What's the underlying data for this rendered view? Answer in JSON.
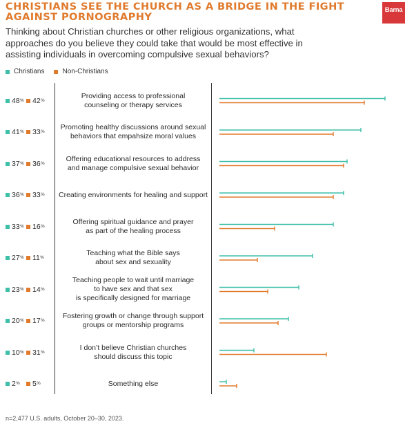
{
  "header": {
    "title": "CHRISTIANS SEE THE CHURCH AS A BRIDGE IN THE FIGHT AGAINST PORNOGRAPHY",
    "logo": "Barna",
    "question": "Thinking about Christian churches or other religious organizations, what approaches do you believe they could take that would be most effective in assisting individuals in overcoming compulsive sexual behaviors?"
  },
  "footnote": "n=2,477 U.S. adults, October 20–30, 2023.",
  "colors": {
    "christians": "#3dbfa9",
    "non_christians": "#e07b2e"
  },
  "chart_data": {
    "type": "bar",
    "orientation": "horizontal",
    "title": "CHRISTIANS SEE THE CHURCH AS A BRIDGE IN THE FIGHT AGAINST PORNOGRAPHY",
    "xlim": [
      0,
      50
    ],
    "unit": "%",
    "legend": [
      "Christians",
      "Non-Christians"
    ],
    "categories": [
      "Providing access to professional\ncounseling or therapy services",
      "Promoting healthy discussions around sexual\nbehaviors that empahsize moral values",
      "Offering educational resources to address\nand manage compulsive sexual behavior",
      "Creating environments for healing and support",
      "Offering spiritual guidance and prayer\nas part of the healing process",
      "Teaching what the Bible says\nabout sex and sexuality",
      "Teaching people to wait until marriage\nto have sex and that sex\nis specifically designed for marriage",
      "Fostering growth or change through support\ngroups or mentorship programs",
      "I don’t believe Christian churches\nshould discuss this topic",
      "Something else"
    ],
    "series": [
      {
        "name": "Christians",
        "values": [
          48,
          41,
          37,
          36,
          33,
          27,
          23,
          20,
          10,
          2
        ]
      },
      {
        "name": "Non-Christians",
        "values": [
          42,
          33,
          36,
          33,
          16,
          11,
          14,
          17,
          31,
          5
        ]
      }
    ]
  }
}
